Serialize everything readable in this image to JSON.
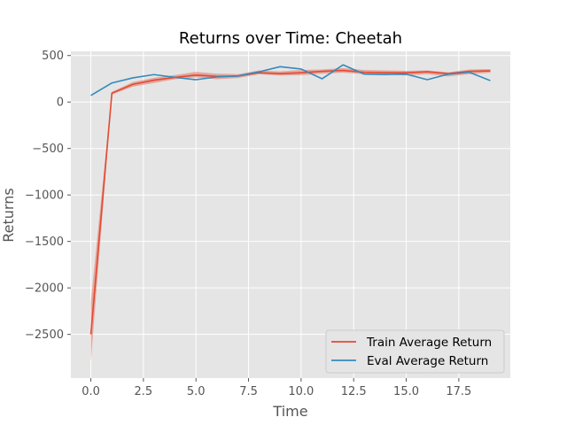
{
  "chart_data": {
    "type": "line",
    "title": "Returns over Time: Cheetah",
    "xlabel": "Time",
    "ylabel": "Returns",
    "xlim": [
      -0.95,
      19.95
    ],
    "ylim": [
      -2970,
      545
    ],
    "xticks": [
      0.0,
      2.5,
      5.0,
      7.5,
      10.0,
      12.5,
      15.0,
      17.5
    ],
    "xtick_labels": [
      "0.0",
      "2.5",
      "5.0",
      "7.5",
      "10.0",
      "12.5",
      "15.0",
      "17.5"
    ],
    "yticks": [
      500,
      0,
      -500,
      -1000,
      -1500,
      -2000,
      -2500
    ],
    "ytick_labels": [
      "500",
      "0",
      "−500",
      "−1000",
      "−1500",
      "−2000",
      "−2500"
    ],
    "grid": true,
    "legend_position": "lower-right",
    "x": [
      0,
      1,
      2,
      3,
      4,
      5,
      6,
      7,
      8,
      9,
      10,
      11,
      12,
      13,
      14,
      15,
      16,
      17,
      18,
      19
    ],
    "series": [
      {
        "name": "Train Average Return",
        "color": "#e24a33",
        "values": [
          -2500,
          95,
          190,
          235,
          265,
          290,
          275,
          280,
          315,
          305,
          315,
          330,
          340,
          320,
          315,
          315,
          325,
          305,
          330,
          335
        ],
        "band_lower": [
          -2800,
          80,
          165,
          205,
          245,
          265,
          245,
          258,
          298,
          285,
          288,
          305,
          315,
          300,
          295,
          285,
          300,
          275,
          300,
          315
        ],
        "band_upper": [
          -2150,
          110,
          215,
          260,
          290,
          325,
          305,
          300,
          340,
          330,
          345,
          350,
          365,
          345,
          340,
          335,
          340,
          320,
          350,
          355
        ]
      },
      {
        "name": "Eval Average Return",
        "color": "#348abd",
        "values": [
          70,
          205,
          260,
          295,
          265,
          240,
          270,
          280,
          325,
          380,
          355,
          250,
          400,
          300,
          295,
          300,
          240,
          300,
          320,
          230
        ]
      }
    ]
  }
}
